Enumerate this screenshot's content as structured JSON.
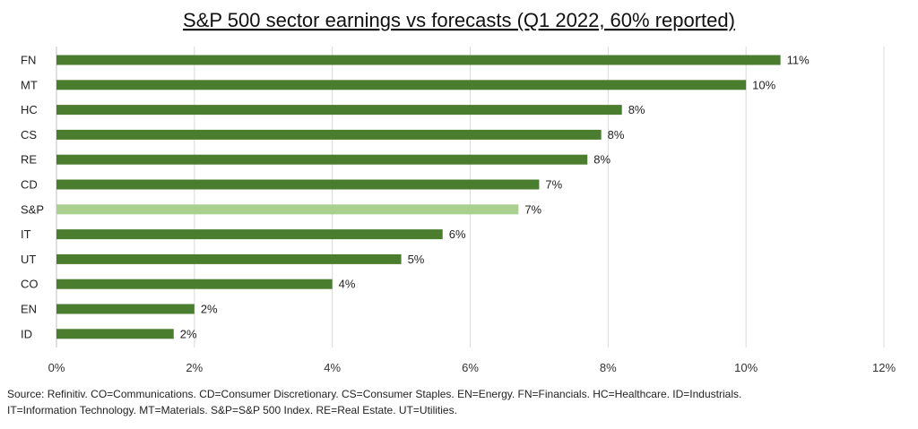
{
  "chart_data": {
    "type": "bar",
    "orientation": "horizontal",
    "title": "S&P 500 sector earnings vs forecasts (Q1 2022, 60% reported)",
    "categories": [
      "FN",
      "MT",
      "HC",
      "CS",
      "RE",
      "CD",
      "S&P",
      "IT",
      "UT",
      "CO",
      "EN",
      "ID"
    ],
    "values": [
      10.5,
      10.0,
      8.2,
      7.9,
      7.7,
      7.0,
      6.7,
      5.6,
      5.0,
      4.0,
      2.0,
      1.7
    ],
    "data_labels": [
      "11%",
      "10%",
      "8%",
      "8%",
      "8%",
      "7%",
      "7%",
      "6%",
      "5%",
      "4%",
      "2%",
      "2%"
    ],
    "highlight_category": "S&P",
    "colors": {
      "bar": "#4a7d2e",
      "highlight": "#a9d08e"
    },
    "xlim": [
      0,
      12
    ],
    "x_ticks": [
      0,
      2,
      4,
      6,
      8,
      10,
      12
    ],
    "x_tick_labels": [
      "0%",
      "2%",
      "4%",
      "6%",
      "8%",
      "10%",
      "12%"
    ],
    "grid": "vertical"
  },
  "source": {
    "line1": "Source: Refinitiv. CO=Communications. CD=Consumer Discretionary. CS=Consumer Staples. EN=Energy. FN=Financials. HC=Healthcare. ID=Industrials.",
    "line2": "IT=Information Technology. MT=Materials. S&P=S&P 500 Index. RE=Real Estate. UT=Utilities."
  }
}
